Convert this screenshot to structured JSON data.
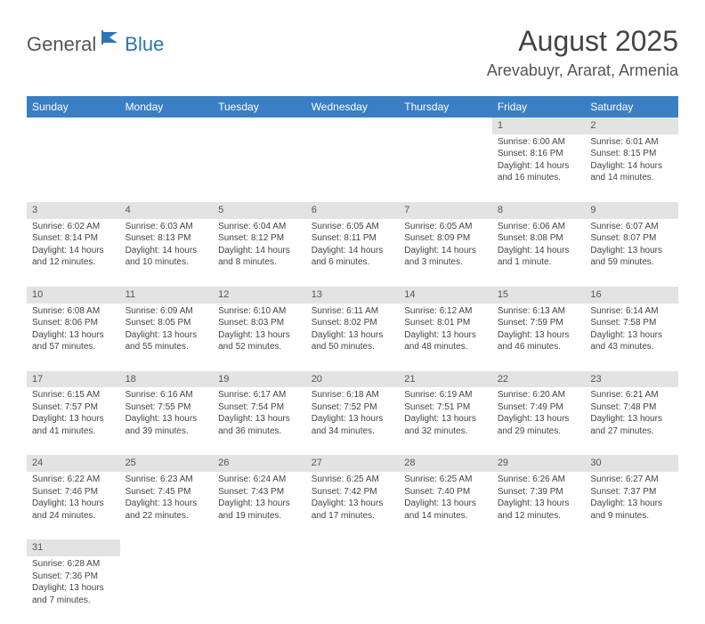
{
  "logo": {
    "part1": "General",
    "part2": "Blue",
    "accent_color": "#2e74b5"
  },
  "title": "August 2025",
  "location": "Arevabuyr, Ararat, Armenia",
  "header_bg": "#3a7fc4",
  "daynum_bg": "#e3e3e3",
  "weekdays": [
    "Sunday",
    "Monday",
    "Tuesday",
    "Wednesday",
    "Thursday",
    "Friday",
    "Saturday"
  ],
  "weeks": [
    [
      null,
      null,
      null,
      null,
      null,
      {
        "n": "1",
        "sunrise": "Sunrise: 6:00 AM",
        "sunset": "Sunset: 8:16 PM",
        "daylight": "Daylight: 14 hours and 16 minutes."
      },
      {
        "n": "2",
        "sunrise": "Sunrise: 6:01 AM",
        "sunset": "Sunset: 8:15 PM",
        "daylight": "Daylight: 14 hours and 14 minutes."
      }
    ],
    [
      {
        "n": "3",
        "sunrise": "Sunrise: 6:02 AM",
        "sunset": "Sunset: 8:14 PM",
        "daylight": "Daylight: 14 hours and 12 minutes."
      },
      {
        "n": "4",
        "sunrise": "Sunrise: 6:03 AM",
        "sunset": "Sunset: 8:13 PM",
        "daylight": "Daylight: 14 hours and 10 minutes."
      },
      {
        "n": "5",
        "sunrise": "Sunrise: 6:04 AM",
        "sunset": "Sunset: 8:12 PM",
        "daylight": "Daylight: 14 hours and 8 minutes."
      },
      {
        "n": "6",
        "sunrise": "Sunrise: 6:05 AM",
        "sunset": "Sunset: 8:11 PM",
        "daylight": "Daylight: 14 hours and 6 minutes."
      },
      {
        "n": "7",
        "sunrise": "Sunrise: 6:05 AM",
        "sunset": "Sunset: 8:09 PM",
        "daylight": "Daylight: 14 hours and 3 minutes."
      },
      {
        "n": "8",
        "sunrise": "Sunrise: 6:06 AM",
        "sunset": "Sunset: 8:08 PM",
        "daylight": "Daylight: 14 hours and 1 minute."
      },
      {
        "n": "9",
        "sunrise": "Sunrise: 6:07 AM",
        "sunset": "Sunset: 8:07 PM",
        "daylight": "Daylight: 13 hours and 59 minutes."
      }
    ],
    [
      {
        "n": "10",
        "sunrise": "Sunrise: 6:08 AM",
        "sunset": "Sunset: 8:06 PM",
        "daylight": "Daylight: 13 hours and 57 minutes."
      },
      {
        "n": "11",
        "sunrise": "Sunrise: 6:09 AM",
        "sunset": "Sunset: 8:05 PM",
        "daylight": "Daylight: 13 hours and 55 minutes."
      },
      {
        "n": "12",
        "sunrise": "Sunrise: 6:10 AM",
        "sunset": "Sunset: 8:03 PM",
        "daylight": "Daylight: 13 hours and 52 minutes."
      },
      {
        "n": "13",
        "sunrise": "Sunrise: 6:11 AM",
        "sunset": "Sunset: 8:02 PM",
        "daylight": "Daylight: 13 hours and 50 minutes."
      },
      {
        "n": "14",
        "sunrise": "Sunrise: 6:12 AM",
        "sunset": "Sunset: 8:01 PM",
        "daylight": "Daylight: 13 hours and 48 minutes."
      },
      {
        "n": "15",
        "sunrise": "Sunrise: 6:13 AM",
        "sunset": "Sunset: 7:59 PM",
        "daylight": "Daylight: 13 hours and 46 minutes."
      },
      {
        "n": "16",
        "sunrise": "Sunrise: 6:14 AM",
        "sunset": "Sunset: 7:58 PM",
        "daylight": "Daylight: 13 hours and 43 minutes."
      }
    ],
    [
      {
        "n": "17",
        "sunrise": "Sunrise: 6:15 AM",
        "sunset": "Sunset: 7:57 PM",
        "daylight": "Daylight: 13 hours and 41 minutes."
      },
      {
        "n": "18",
        "sunrise": "Sunrise: 6:16 AM",
        "sunset": "Sunset: 7:55 PM",
        "daylight": "Daylight: 13 hours and 39 minutes."
      },
      {
        "n": "19",
        "sunrise": "Sunrise: 6:17 AM",
        "sunset": "Sunset: 7:54 PM",
        "daylight": "Daylight: 13 hours and 36 minutes."
      },
      {
        "n": "20",
        "sunrise": "Sunrise: 6:18 AM",
        "sunset": "Sunset: 7:52 PM",
        "daylight": "Daylight: 13 hours and 34 minutes."
      },
      {
        "n": "21",
        "sunrise": "Sunrise: 6:19 AM",
        "sunset": "Sunset: 7:51 PM",
        "daylight": "Daylight: 13 hours and 32 minutes."
      },
      {
        "n": "22",
        "sunrise": "Sunrise: 6:20 AM",
        "sunset": "Sunset: 7:49 PM",
        "daylight": "Daylight: 13 hours and 29 minutes."
      },
      {
        "n": "23",
        "sunrise": "Sunrise: 6:21 AM",
        "sunset": "Sunset: 7:48 PM",
        "daylight": "Daylight: 13 hours and 27 minutes."
      }
    ],
    [
      {
        "n": "24",
        "sunrise": "Sunrise: 6:22 AM",
        "sunset": "Sunset: 7:46 PM",
        "daylight": "Daylight: 13 hours and 24 minutes."
      },
      {
        "n": "25",
        "sunrise": "Sunrise: 6:23 AM",
        "sunset": "Sunset: 7:45 PM",
        "daylight": "Daylight: 13 hours and 22 minutes."
      },
      {
        "n": "26",
        "sunrise": "Sunrise: 6:24 AM",
        "sunset": "Sunset: 7:43 PM",
        "daylight": "Daylight: 13 hours and 19 minutes."
      },
      {
        "n": "27",
        "sunrise": "Sunrise: 6:25 AM",
        "sunset": "Sunset: 7:42 PM",
        "daylight": "Daylight: 13 hours and 17 minutes."
      },
      {
        "n": "28",
        "sunrise": "Sunrise: 6:25 AM",
        "sunset": "Sunset: 7:40 PM",
        "daylight": "Daylight: 13 hours and 14 minutes."
      },
      {
        "n": "29",
        "sunrise": "Sunrise: 6:26 AM",
        "sunset": "Sunset: 7:39 PM",
        "daylight": "Daylight: 13 hours and 12 minutes."
      },
      {
        "n": "30",
        "sunrise": "Sunrise: 6:27 AM",
        "sunset": "Sunset: 7:37 PM",
        "daylight": "Daylight: 13 hours and 9 minutes."
      }
    ],
    [
      {
        "n": "31",
        "sunrise": "Sunrise: 6:28 AM",
        "sunset": "Sunset: 7:36 PM",
        "daylight": "Daylight: 13 hours and 7 minutes."
      },
      null,
      null,
      null,
      null,
      null,
      null
    ]
  ]
}
